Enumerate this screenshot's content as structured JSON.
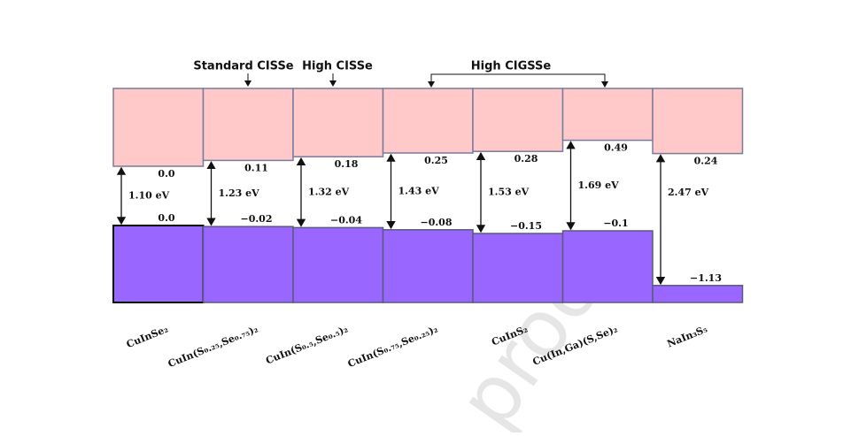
{
  "headers": {
    "standard": "Standard CISSe",
    "high": "High CISSe",
    "high_cigsse": "High CIGSSe"
  },
  "watermark": "proof",
  "materials": [
    {
      "name": "CuInSe₂",
      "cbo": {
        "value": 0,
        "label": "0.0"
      },
      "vbo": {
        "value": 0,
        "label": "0.0"
      },
      "gap": {
        "value": 1.1,
        "label": "1.10 eV"
      }
    },
    {
      "name": "CuIn(S₀.₂₅,Se₀.₇₅)₂",
      "cbo": {
        "value": 0.11,
        "label": "0.11"
      },
      "vbo": {
        "value": -0.02,
        "label": "−0.02"
      },
      "gap": {
        "value": 1.23,
        "label": "1.23 eV"
      }
    },
    {
      "name": "CuIn(S₀.₅,Se₀.₅)₂",
      "cbo": {
        "value": 0.18,
        "label": "0.18"
      },
      "vbo": {
        "value": -0.04,
        "label": "−0.04"
      },
      "gap": {
        "value": 1.32,
        "label": "1.32 eV"
      }
    },
    {
      "name": "CuIn(S₀.₇₅,Se₀.₂₅)₂",
      "cbo": {
        "value": 0.25,
        "label": "0.25"
      },
      "vbo": {
        "value": -0.08,
        "label": "−0.08"
      },
      "gap": {
        "value": 1.43,
        "label": "1.43 eV"
      }
    },
    {
      "name": "CuInS₂",
      "cbo": {
        "value": 0.28,
        "label": "0.28"
      },
      "vbo": {
        "value": -0.15,
        "label": "−0.15"
      },
      "gap": {
        "value": 1.53,
        "label": "1.53 eV"
      }
    },
    {
      "name": "Cu(In,Ga)(S,Se)₂",
      "cbo": {
        "value": 0.49,
        "label": "0.49"
      },
      "vbo": {
        "value": -0.1,
        "label": "−0.1"
      },
      "gap": {
        "value": 1.69,
        "label": "1.69 eV"
      }
    },
    {
      "name": "NaIn₃S₅",
      "cbo": {
        "value": 0.24,
        "label": "0.24"
      },
      "vbo": {
        "value": -1.13,
        "label": "−1.13"
      },
      "gap": {
        "value": 2.47,
        "label": "2.47 eV"
      }
    }
  ]
}
